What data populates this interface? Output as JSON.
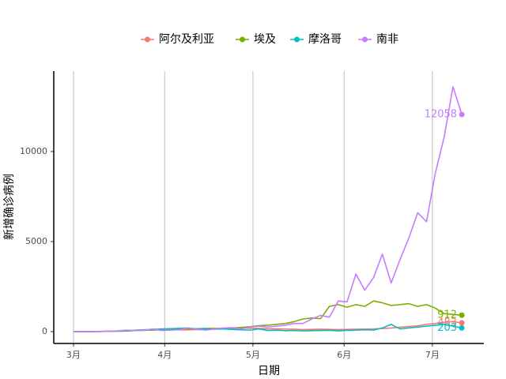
{
  "chart_data": {
    "type": "line",
    "xlabel": "日期",
    "ylabel": "新增确诊病例",
    "x": [
      0,
      3,
      6,
      9,
      12,
      15,
      18,
      21,
      24,
      27,
      30,
      33,
      36,
      39,
      42,
      45,
      48,
      51,
      54,
      57,
      60,
      63,
      66,
      69,
      72,
      75,
      78,
      81,
      84,
      87,
      90,
      93,
      96,
      99,
      102,
      105,
      108,
      111,
      114,
      117,
      120,
      123,
      126,
      129,
      132
    ],
    "series": [
      {
        "name": "阿尔及利亚",
        "color": "#F8766D",
        "values": [
          0,
          0,
          0,
          5,
          15,
          20,
          30,
          60,
          70,
          90,
          100,
          110,
          95,
          100,
          110,
          130,
          140,
          150,
          170,
          180,
          190,
          170,
          160,
          150,
          140,
          130,
          110,
          120,
          130,
          120,
          110,
          120,
          130,
          140,
          150,
          170,
          200,
          240,
          280,
          320,
          400,
          450,
          520,
          550,
          483
        ]
      },
      {
        "name": "埃及",
        "color": "#7CAE00",
        "values": [
          0,
          0,
          2,
          10,
          20,
          30,
          40,
          60,
          70,
          90,
          100,
          120,
          130,
          150,
          160,
          170,
          180,
          170,
          200,
          230,
          270,
          330,
          350,
          400,
          450,
          550,
          700,
          750,
          720,
          1400,
          1500,
          1350,
          1500,
          1400,
          1700,
          1600,
          1450,
          1500,
          1550,
          1400,
          1500,
          1300,
          1000,
          950,
          912
        ]
      },
      {
        "name": "摩洛哥",
        "color": "#00BFC4",
        "values": [
          0,
          0,
          1,
          5,
          20,
          30,
          50,
          80,
          100,
          120,
          150,
          160,
          180,
          200,
          150,
          170,
          130,
          150,
          120,
          100,
          80,
          150,
          60,
          80,
          50,
          60,
          40,
          50,
          60,
          70,
          40,
          70,
          80,
          100,
          80,
          200,
          400,
          150,
          200,
          250,
          300,
          350,
          400,
          300,
          203
        ]
      },
      {
        "name": "南非",
        "color": "#C77CFF",
        "values": [
          0,
          0,
          0,
          2,
          20,
          40,
          80,
          60,
          70,
          150,
          60,
          80,
          100,
          200,
          120,
          80,
          150,
          200,
          220,
          150,
          250,
          300,
          250,
          300,
          350,
          450,
          450,
          700,
          900,
          800,
          1700,
          1650,
          3200,
          2300,
          3000,
          4300,
          2700,
          4000,
          5200,
          6600,
          6100,
          8800,
          10800,
          13600,
          12058
        ]
      }
    ],
    "xlim": [
      -6.7,
      139.5
    ],
    "xticks": [
      {
        "value": 0,
        "label": "3月"
      },
      {
        "value": 31,
        "label": "4月"
      },
      {
        "value": 61,
        "label": "5月"
      },
      {
        "value": 92,
        "label": "6月"
      },
      {
        "value": 122,
        "label": "7月"
      }
    ],
    "ylim": [
      -660,
      14470
    ],
    "yticks": [
      0,
      5000,
      10000
    ],
    "grid": "x",
    "legend": "top"
  }
}
